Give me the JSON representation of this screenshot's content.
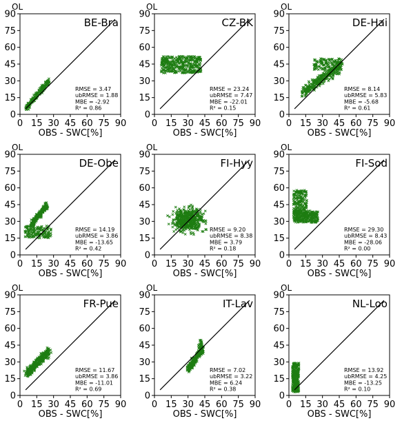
{
  "chart_data": {
    "type": "scatter",
    "run_label": "OL",
    "xlabel": "OBS - SWC[%]",
    "xlim": [
      0,
      90
    ],
    "ylim": [
      0,
      90
    ],
    "ticks": [
      "0",
      "15",
      "30",
      "45",
      "60",
      "75",
      "90"
    ],
    "point_color": "#1e7d12",
    "one_to_one_line": [
      [
        5,
        5
      ],
      [
        85,
        85
      ]
    ],
    "panels": [
      {
        "site": "BE-Bra",
        "stats": {
          "rmse": "RMSE = 3.47",
          "ubrmse": "ubRMSE = 1.88",
          "mbe": "MBE = -2.92",
          "r2": "R² = 0.86"
        },
        "clusters": [
          {
            "x": [
              6,
              26
            ],
            "y": [
              6,
              30
            ],
            "shape": "diag",
            "width": 3.5,
            "n": 220
          }
        ]
      },
      {
        "site": "CZ-BK",
        "stats": {
          "rmse": "RMSE = 23.24",
          "ubrmse": "ubRMSE = 7.47",
          "mbe": "MBE = -22.01",
          "r2": "R² = 0.15"
        },
        "clusters": [
          {
            "x": [
              6,
              42
            ],
            "y": [
              37,
              52
            ],
            "shape": "box",
            "n": 380
          }
        ]
      },
      {
        "site": "DE-Hai",
        "stats": {
          "rmse": "RMSE = 8.14",
          "ubrmse": "ubRMSE = 5.83",
          "mbe": "MBE = -5.68",
          "r2": "R² = 0.61"
        },
        "clusters": [
          {
            "x": [
              12,
              45
            ],
            "y": [
              20,
              42
            ],
            "shape": "diag",
            "width": 7,
            "n": 300
          },
          {
            "x": [
              22,
              48
            ],
            "y": [
              40,
              50
            ],
            "shape": "box",
            "n": 140
          }
        ]
      },
      {
        "site": "DE-Obe",
        "stats": {
          "rmse": "RMSE = 14.19",
          "ubrmse": "ubRMSE = 3.86",
          "mbe": "MBE = -13.65",
          "r2": "R² = 0.42"
        },
        "clusters": [
          {
            "x": [
              10,
              24
            ],
            "y": [
              27,
              44
            ],
            "shape": "diag",
            "width": 4,
            "n": 220
          },
          {
            "x": [
              4,
              28
            ],
            "y": [
              15,
              26
            ],
            "shape": "box",
            "n": 150
          }
        ]
      },
      {
        "site": "FI-Hyy",
        "stats": {
          "rmse": "RMSE = 9.20",
          "ubrmse": "ubRMSE = 8.38",
          "mbe": "MBE = 3.79",
          "r2": "R² = 0.18"
        },
        "clusters": [
          {
            "x": [
              10,
              50
            ],
            "y": [
              15,
              48
            ],
            "shape": "blob",
            "n": 500
          }
        ]
      },
      {
        "site": "FI-Sod",
        "stats": {
          "rmse": "RMSE = 29.30",
          "ubrmse": "ubRMSE = 8.43",
          "mbe": "MBE = -28.06",
          "r2": "R² = 0.00"
        },
        "clusters": [
          {
            "x": [
              4,
              26
            ],
            "y": [
              29,
              40
            ],
            "shape": "box",
            "n": 300
          },
          {
            "x": [
              4,
              16
            ],
            "y": [
              38,
              58
            ],
            "shape": "box",
            "n": 170
          }
        ]
      },
      {
        "site": "FR-Pue",
        "stats": {
          "rmse": "RMSE = 11.67",
          "ubrmse": "ubRMSE = 3.86",
          "mbe": "MBE = -11.01",
          "r2": "R² = 0.69"
        },
        "clusters": [
          {
            "x": [
              6,
              26
            ],
            "y": [
              19,
              40
            ],
            "shape": "diag",
            "width": 6,
            "n": 330
          }
        ]
      },
      {
        "site": "IT-Lav",
        "stats": {
          "rmse": "RMSE = 7.02",
          "ubrmse": "ubRMSE = 3.22",
          "mbe": "MBE = 6.24",
          "r2": "R² = 0.38"
        },
        "clusters": [
          {
            "x": [
              30,
              43
            ],
            "y": [
              23,
              42
            ],
            "shape": "diag",
            "width": 5,
            "n": 260
          },
          {
            "x": [
              39,
              43
            ],
            "y": [
              42,
              50
            ],
            "shape": "box",
            "n": 20
          }
        ]
      },
      {
        "site": "NL-Loo",
        "stats": {
          "rmse": "RMSE = 13.92",
          "ubrmse": "ubRMSE = 4.25",
          "mbe": "MBE = -13.25",
          "r2": "R² = 0.10"
        },
        "clusters": [
          {
            "x": [
              3,
              9
            ],
            "y": [
              3,
              29
            ],
            "shape": "box",
            "n": 280
          }
        ]
      }
    ]
  }
}
